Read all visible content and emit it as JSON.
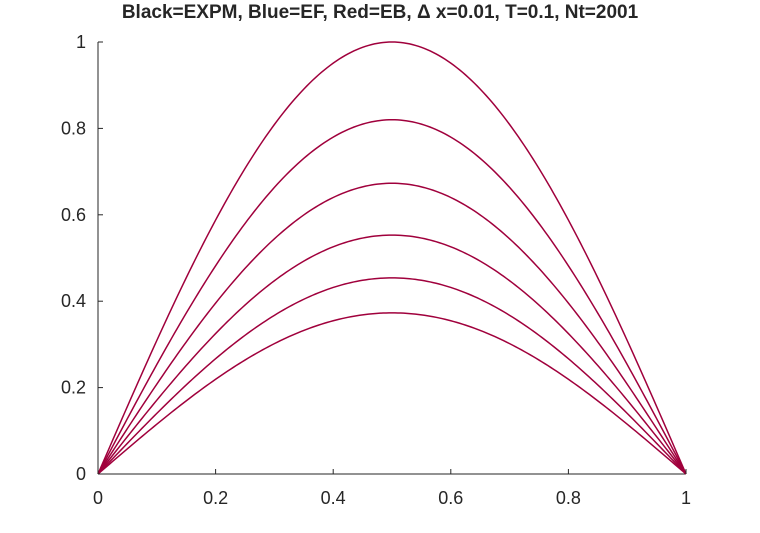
{
  "chart_data": {
    "type": "line",
    "title": "Black=EXPM, Blue=EF, Red=EB, Δ x=0.01, T=0.1, Nt=2001",
    "xlabel": "",
    "ylabel": "",
    "xlim": [
      0,
      1
    ],
    "ylim": [
      0,
      1
    ],
    "x_ticks": [
      "0",
      "0.2",
      "0.4",
      "0.6",
      "0.8",
      "1"
    ],
    "y_ticks": [
      "0",
      "0.2",
      "0.4",
      "0.6",
      "0.8",
      "1"
    ],
    "grid": false,
    "line_color": "#a0003c",
    "curve_shape": "sin(pi x)",
    "amplitudes": [
      1.0,
      0.82,
      0.673,
      0.553,
      0.454,
      0.373
    ]
  }
}
